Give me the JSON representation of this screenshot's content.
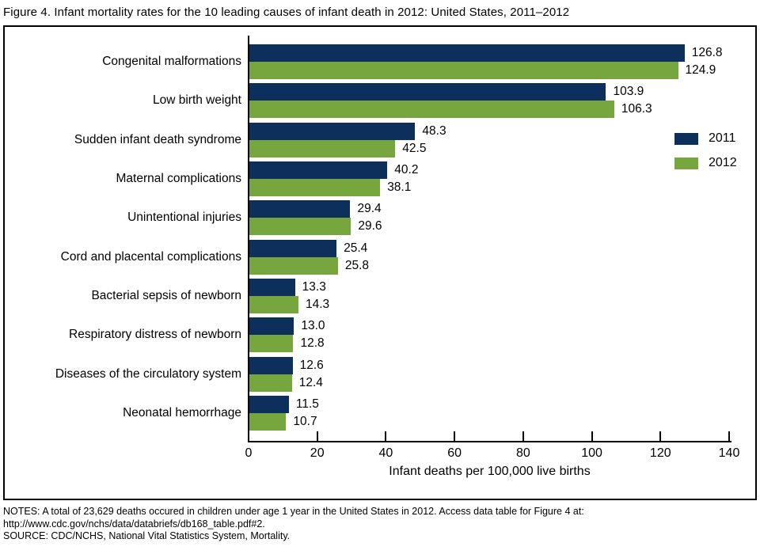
{
  "title": "Figure 4. Infant mortality rates for the 10 leading causes of infant death in 2012: United States, 2011–2012",
  "chart_data": {
    "type": "bar",
    "orientation": "horizontal",
    "title": "Figure 4. Infant mortality rates for the 10 leading causes of infant death in 2012: United States, 2011–2012",
    "categories": [
      "Congenital malformations",
      "Low birth weight",
      "Sudden infant death syndrome",
      "Maternal complications",
      "Unintentional injuries",
      "Cord and placental complications",
      "Bacterial sepsis of newborn",
      "Respiratory distress of newborn",
      "Diseases of the circulatory system",
      "Neonatal hemorrhage"
    ],
    "series": [
      {
        "name": "2011",
        "color": "#0d2f5c",
        "values": [
          126.8,
          103.9,
          48.3,
          40.2,
          29.4,
          25.4,
          13.3,
          13.0,
          12.6,
          11.5
        ]
      },
      {
        "name": "2012",
        "color": "#77a63f",
        "values": [
          124.9,
          106.3,
          42.5,
          38.1,
          29.6,
          25.8,
          14.3,
          12.8,
          12.4,
          10.7
        ]
      }
    ],
    "xlabel": "Infant deaths per 100,000 live births",
    "ylabel": "",
    "xlim": [
      0,
      140
    ],
    "xticks": [
      0,
      20,
      40,
      60,
      80,
      100,
      120,
      140
    ],
    "grid": false,
    "legend_position": "right-inside",
    "value_labels": true,
    "value_label_decimals": 1
  },
  "notes": {
    "line1": "NOTES: A total of 23,629 deaths occured in children under age 1 year in the United States in 2012. Access data table for Figure 4 at:",
    "line2": "http://www.cdc.gov/nchs/data/databriefs/db168_table.pdf#2.",
    "line3": "SOURCE: CDC/NCHS, National Vital Statistics System, Mortality."
  }
}
